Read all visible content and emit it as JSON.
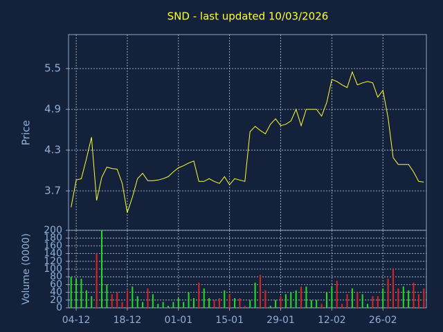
{
  "chart_data": [
    {
      "type": "line",
      "title": "SND - last updated 10/03/2026",
      "ylabel": "Price",
      "color": "#ffff33",
      "grid": true,
      "categories": [
        "03-12",
        "04-12",
        "05-12",
        "08-12",
        "09-12",
        "10-12",
        "11-12",
        "12-12",
        "15-12",
        "16-12",
        "17-12",
        "18-12",
        "19-12",
        "22-12",
        "23-12",
        "24-12",
        "25-12",
        "26-12",
        "29-12",
        "30-12",
        "31-12",
        "01-01",
        "02-01",
        "05-01",
        "06-01",
        "07-01",
        "08-01",
        "09-01",
        "12-01",
        "13-01",
        "14-01",
        "15-01",
        "16-01",
        "19-01",
        "20-01",
        "21-01",
        "22-01",
        "23-01",
        "26-01",
        "27-01",
        "28-01",
        "29-01",
        "30-01",
        "02-02",
        "03-02",
        "04-02",
        "05-02",
        "06-02",
        "09-02",
        "10-02",
        "11-02",
        "12-02",
        "13-02",
        "16-02",
        "17-02",
        "18-02",
        "19-02",
        "20-02",
        "23-02",
        "24-02",
        "25-02",
        "26-02",
        "27-02",
        "02-03",
        "03-03",
        "04-03",
        "05-03",
        "06-03",
        "09-03",
        "10-03"
      ],
      "xticks": [
        "04-12",
        "18-12",
        "01-01",
        "15-01",
        "29-01",
        "12-02",
        "26-02"
      ],
      "values": [
        3.46,
        3.86,
        3.88,
        4.17,
        4.49,
        3.56,
        3.9,
        4.05,
        4.03,
        4.02,
        3.81,
        3.38,
        3.61,
        3.88,
        3.96,
        3.85,
        3.85,
        3.86,
        3.88,
        3.91,
        3.98,
        4.04,
        4.07,
        4.11,
        4.14,
        3.84,
        3.84,
        3.88,
        3.84,
        3.81,
        3.91,
        3.79,
        3.88,
        3.86,
        3.84,
        4.57,
        4.65,
        4.59,
        4.54,
        4.68,
        4.76,
        4.66,
        4.68,
        4.73,
        4.9,
        4.66,
        4.9,
        4.9,
        4.9,
        4.8,
        5.0,
        5.34,
        5.31,
        5.26,
        5.22,
        5.45,
        5.26,
        5.29,
        5.31,
        5.29,
        5.08,
        5.18,
        4.78,
        4.19,
        4.09,
        4.09,
        4.09,
        3.98,
        3.84,
        3.83
      ],
      "ylim": [
        3.12,
        6.0
      ],
      "yticks": [
        3.7,
        4.3,
        4.9,
        5.5
      ]
    },
    {
      "type": "bar",
      "ylabel": "Volume (0000)",
      "up_color": "#22dd22",
      "down_color": "#dd2222",
      "grid": true,
      "values": [
        80,
        75,
        75,
        45,
        30,
        140,
        200,
        60,
        35,
        40,
        15,
        45,
        55,
        30,
        15,
        50,
        35,
        10,
        15,
        5,
        15,
        25,
        15,
        40,
        25,
        65,
        50,
        25,
        20,
        25,
        45,
        35,
        25,
        25,
        5,
        20,
        65,
        85,
        45,
        5,
        20,
        30,
        35,
        40,
        45,
        55,
        55,
        20,
        20,
        10,
        40,
        55,
        70,
        10,
        35,
        50,
        40,
        35,
        10,
        30,
        30,
        50,
        75,
        100,
        50,
        55,
        45,
        65,
        35,
        50
      ],
      "ylim": [
        0,
        200
      ],
      "yticks": [
        0,
        20,
        40,
        60,
        80,
        100,
        120,
        140,
        160,
        180,
        200
      ]
    }
  ]
}
